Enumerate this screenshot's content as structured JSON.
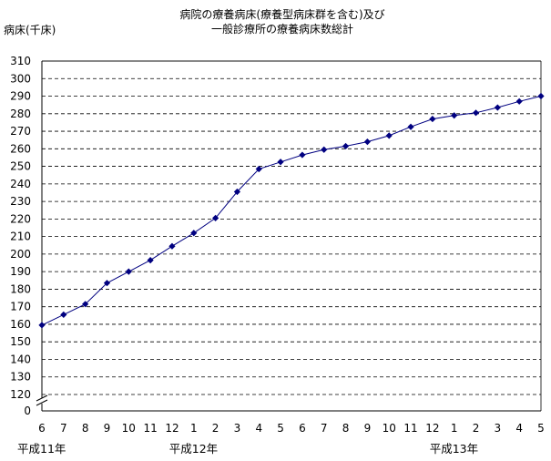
{
  "chart_data": {
    "type": "line",
    "title_line1": "病院の療養病床(療養型病床群を含む)及び",
    "title_line2": "一般診療所の療養病床数総計",
    "ylabel": "病床(千床)",
    "y_ticks": [
      310,
      300,
      290,
      280,
      270,
      260,
      250,
      240,
      230,
      220,
      210,
      200,
      190,
      180,
      170,
      160,
      150,
      140,
      130,
      120,
      0
    ],
    "y_axis_break": true,
    "ylim": [
      120,
      310
    ],
    "grid": true,
    "categories": [
      "6",
      "7",
      "8",
      "9",
      "10",
      "11",
      "12",
      "1",
      "2",
      "3",
      "4",
      "5",
      "6",
      "7",
      "8",
      "9",
      "10",
      "11",
      "12",
      "1",
      "2",
      "3",
      "4",
      "5"
    ],
    "era_labels": [
      {
        "text": "平成11年",
        "at_index": 0
      },
      {
        "text": "平成12年",
        "at_index": 7
      },
      {
        "text": "平成13年",
        "at_index": 19
      }
    ],
    "series": [
      {
        "color": "#000080",
        "values": [
          159.5,
          165.5,
          171.5,
          183.5,
          190.0,
          196.5,
          204.5,
          212.0,
          220.5,
          235.5,
          248.5,
          252.5,
          256.5,
          259.5,
          261.5,
          264.0,
          267.5,
          272.5,
          277.0,
          279.0,
          280.5,
          283.5,
          287.0,
          290.0
        ]
      }
    ]
  }
}
